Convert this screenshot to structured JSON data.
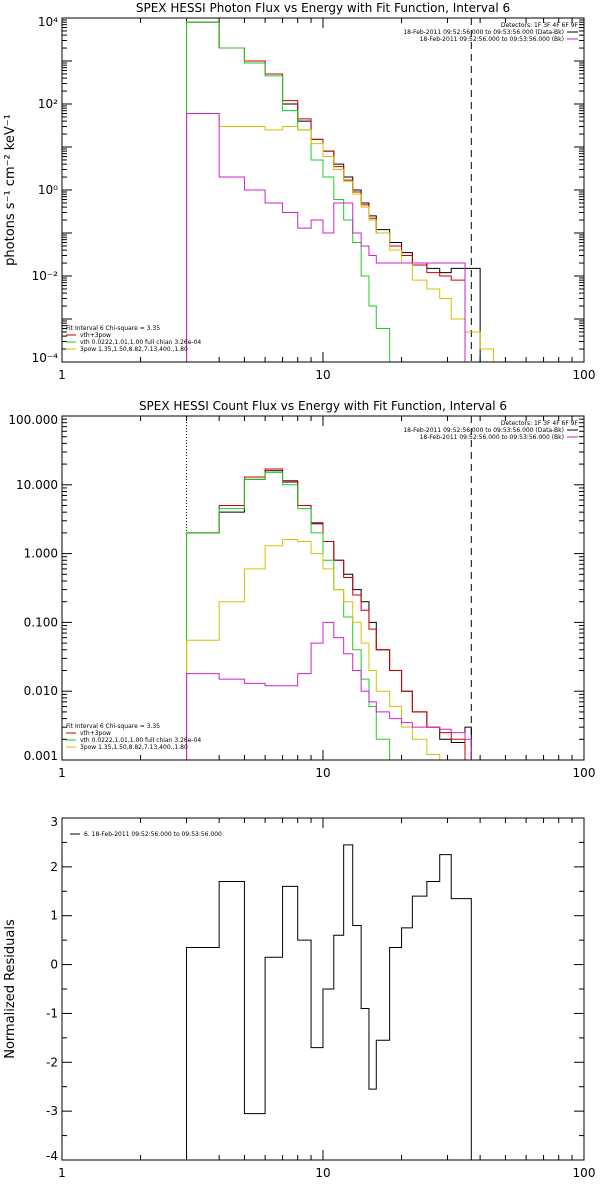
{
  "colors": {
    "black": "#000000",
    "red": "#cc0000",
    "green": "#22cc22",
    "yellow": "#d8c000",
    "magenta": "#cc22cc",
    "orange": "#ff8800"
  },
  "chart_data": [
    {
      "type": "line",
      "title": "SPEX HESSI Photon Flux vs Energy with Fit Function, Interval 6",
      "xlabel": "",
      "ylabel": "photons s⁻¹ cm⁻² keV⁻¹",
      "xscale": "log",
      "yscale": "log",
      "xlim": [
        1,
        100
      ],
      "ylim": [
        0.0001,
        10000
      ],
      "xticks": [
        {
          "v": 1,
          "label": "1"
        },
        {
          "v": 10,
          "label": "10"
        },
        {
          "v": 100,
          "label": "100"
        }
      ],
      "yticks": [
        {
          "v": 0.0001,
          "label": "10⁻⁴"
        },
        {
          "v": 0.01,
          "label": "10⁻²"
        },
        {
          "v": 1,
          "label": "10⁰"
        },
        {
          "v": 100,
          "label": "10²"
        },
        {
          "v": 10000,
          "label": "10⁴"
        }
      ],
      "edges": [
        3,
        4,
        5,
        6,
        7,
        8,
        9,
        10,
        11,
        12,
        13,
        14,
        15,
        16,
        18,
        20,
        22,
        25,
        28,
        31,
        35,
        40,
        45,
        50
      ],
      "series": [
        {
          "name": "Data",
          "color": "black",
          "values": [
            8000,
            2000,
            1000,
            500,
            100,
            40,
            15,
            8,
            4,
            2,
            1,
            0.5,
            0.25,
            0.12,
            0.06,
            0.035,
            0.02,
            0.015,
            0.012,
            0.015,
            0.015,
            null,
            null
          ]
        },
        {
          "color": "red",
          "values": [
            8000,
            2000,
            1000,
            500,
            120,
            45,
            15,
            8,
            3.5,
            1.7,
            0.9,
            0.45,
            0.22,
            0.1,
            0.05,
            0.03,
            0.018,
            0.012,
            0.01,
            0.008,
            0.0001,
            null,
            null
          ]
        },
        {
          "color": "green",
          "values": [
            8000,
            2000,
            900,
            450,
            70,
            25,
            5,
            2,
            0.6,
            0.2,
            0.06,
            0.01,
            0.002,
            0.0006,
            0.0001,
            null,
            null,
            null,
            null,
            null,
            null,
            null,
            null
          ]
        },
        {
          "color": "yellow",
          "values": [
            60,
            30,
            30,
            25,
            30,
            25,
            12,
            6,
            3,
            1.6,
            0.8,
            0.4,
            0.2,
            0.1,
            0.04,
            0.02,
            0.008,
            0.005,
            0.003,
            0.001,
            0.0005,
            0.0002,
            0.0001
          ]
        },
        {
          "color": "magenta",
          "values": [
            60,
            2,
            1,
            0.5,
            0.3,
            0.13,
            0.2,
            0.1,
            0.5,
            0.5,
            0.1,
            0.05,
            0.03,
            0.02,
            0.02,
            0.02,
            0.02,
            0.02,
            0.02,
            0.02,
            null,
            null,
            null
          ]
        }
      ],
      "vlines": [
        {
          "x": 3,
          "color": "orange",
          "style": "dotted"
        },
        {
          "x": 37,
          "color": "black",
          "style": "dashed"
        }
      ],
      "legend_right": {
        "lines": [
          {
            "text": "Detectors: 1F 3F 4F 6F 9F",
            "color": ""
          },
          {
            "text": "18-Feb-2011 09:52:56.000 to 09:53:56.000 (Data-Bk)",
            "color": "black"
          },
          {
            "text": "18-Feb-2011 09:52:56.000 to 09:53:56.000 (Bk)",
            "color": "magenta"
          }
        ]
      },
      "legend_left": {
        "lines": [
          {
            "text": "Fit Interval  6    Chi-square = 3.35",
            "color": ""
          },
          {
            "text": "vth+3pow",
            "color": "red"
          },
          {
            "text": "vth 0.0222,1.01,1.00  full chian 3.26e-04",
            "color": "green"
          },
          {
            "text": "3pow 1.35,1.50,8.82,7.13,400.,1.80",
            "color": "yellow"
          }
        ]
      }
    },
    {
      "type": "line",
      "title": "SPEX HESSI Count Flux vs Energy with Fit Function, Interval 6",
      "xlabel": "",
      "ylabel": "",
      "xscale": "log",
      "yscale": "log",
      "xlim": [
        1,
        100
      ],
      "ylim": [
        0.001,
        100
      ],
      "xticks": [
        {
          "v": 1,
          "label": "1"
        },
        {
          "v": 10,
          "label": "10"
        },
        {
          "v": 100,
          "label": "100"
        }
      ],
      "yticks": [
        {
          "v": 0.001,
          "label": "0.001"
        },
        {
          "v": 0.01,
          "label": "0.010"
        },
        {
          "v": 0.1,
          "label": "0.100"
        },
        {
          "v": 1,
          "label": "1.000"
        },
        {
          "v": 10,
          "label": "10.000"
        },
        {
          "v": 100,
          "label": "100.000"
        }
      ],
      "edges": [
        3,
        4,
        5,
        6,
        7,
        8,
        9,
        10,
        11,
        12,
        13,
        14,
        15,
        16,
        18,
        20,
        22,
        25,
        28,
        31,
        35,
        37
      ],
      "series": [
        {
          "name": "Data",
          "color": "black",
          "values": [
            2,
            4,
            12,
            16,
            11,
            5,
            2.8,
            1.5,
            0.8,
            0.5,
            0.3,
            0.2,
            0.1,
            0.04,
            0.02,
            0.01,
            0.005,
            0.003,
            0.002,
            0.0018,
            0.003
          ]
        },
        {
          "color": "red",
          "values": [
            2,
            5,
            13,
            17,
            11.5,
            5,
            2.7,
            1.5,
            0.8,
            0.45,
            0.25,
            0.15,
            0.08,
            0.04,
            0.02,
            0.01,
            0.005,
            0.003,
            0.0025,
            0.002,
            0.001
          ]
        },
        {
          "color": "green",
          "values": [
            2,
            4.5,
            12,
            15,
            10,
            4.5,
            2,
            0.8,
            0.3,
            0.12,
            0.04,
            0.015,
            0.006,
            0.002,
            0.001,
            null,
            null,
            null,
            null,
            null,
            null
          ]
        },
        {
          "color": "yellow",
          "values": [
            0.055,
            0.2,
            0.6,
            1.3,
            1.6,
            1.5,
            1,
            0.6,
            0.3,
            0.2,
            0.1,
            0.05,
            0.02,
            0.01,
            0.006,
            0.003,
            0.002,
            0.0012,
            0.0009,
            0.0008,
            null
          ]
        },
        {
          "color": "magenta",
          "values": [
            0.018,
            0.015,
            0.013,
            0.012,
            0.012,
            0.018,
            0.05,
            0.1,
            0.06,
            0.035,
            0.02,
            0.01,
            0.007,
            0.005,
            0.004,
            0.0035,
            0.003,
            0.003,
            0.0028,
            0.0025,
            0.002
          ]
        }
      ],
      "vlines": [
        {
          "x": 3,
          "color": "black",
          "style": "dotted"
        },
        {
          "x": 37,
          "color": "black",
          "style": "dashed"
        }
      ],
      "legend_right": {
        "lines": [
          {
            "text": "Detectors: 1F 3F 4F 6F 9F",
            "color": ""
          },
          {
            "text": "18-Feb-2011 09:52:56.000 to 09:53:56.000 (Data-Bk)",
            "color": "black"
          },
          {
            "text": "18-Feb-2011 09:52:56.000 to 09:53:56.000 (Bk)",
            "color": "magenta"
          }
        ]
      },
      "legend_left": {
        "lines": [
          {
            "text": "Fit Interval  6    Chi-square = 3.35",
            "color": ""
          },
          {
            "text": "vth+3pow",
            "color": "red"
          },
          {
            "text": "vth 0.0222,1.01,1.00  full chian 3.26e-04",
            "color": "green"
          },
          {
            "text": "3pow 1.35,1.50,8.82,7.13,400.,1.80",
            "color": "yellow"
          }
        ]
      }
    },
    {
      "type": "line",
      "title": "",
      "xlabel": "",
      "ylabel": "Normalized Residuals",
      "xscale": "log",
      "yscale": "linear",
      "xlim": [
        1,
        100
      ],
      "ylim": [
        -4,
        3
      ],
      "xticks": [
        {
          "v": 1,
          "label": "1"
        },
        {
          "v": 10,
          "label": "10"
        },
        {
          "v": 100,
          "label": "100"
        }
      ],
      "yticks": [
        {
          "v": -4,
          "label": "-4"
        },
        {
          "v": -3,
          "label": "-3"
        },
        {
          "v": -2,
          "label": "-2"
        },
        {
          "v": -1,
          "label": "-1"
        },
        {
          "v": 0,
          "label": "0"
        },
        {
          "v": 1,
          "label": "1"
        },
        {
          "v": 2,
          "label": "2"
        },
        {
          "v": 3,
          "label": "3"
        }
      ],
      "edges": [
        3,
        4,
        5,
        6,
        7,
        8,
        9,
        10,
        11,
        12,
        13,
        14,
        15,
        16,
        18,
        20,
        22,
        25,
        28,
        31,
        35,
        37
      ],
      "series": [
        {
          "color": "black",
          "values": [
            0.35,
            1.7,
            -3.05,
            0.15,
            1.6,
            0.5,
            -1.7,
            -0.5,
            0.6,
            2.45,
            0.8,
            -0.9,
            -2.55,
            -1.55,
            0.35,
            0.75,
            1.4,
            1.7,
            2.25,
            1.35,
            1.35
          ]
        }
      ],
      "vlines": [],
      "legend_right": {
        "lines": []
      },
      "legend_left": {
        "lines": []
      },
      "legend_top": {
        "lines": [
          {
            "text": "6. 18-Feb-2011 09:52:56.000 to 09:53:56.000",
            "color": "black"
          }
        ]
      }
    }
  ]
}
